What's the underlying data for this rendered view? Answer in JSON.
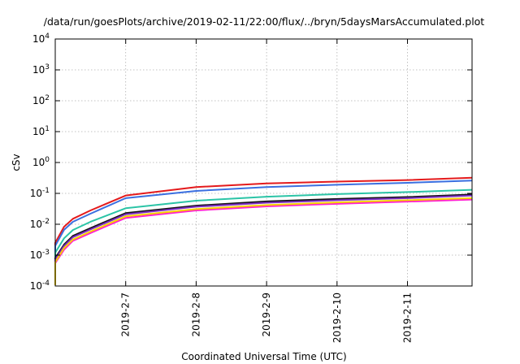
{
  "chart_data": {
    "type": "line",
    "title": "/data/run/goesPlots/archive/2019-02-11/22:00/flux/../bryn/5daysMarsAccumulated.plot",
    "xlabel": "Coordinated Universal Time (UTC)",
    "ylabel": "cSv",
    "yscale": "log",
    "ylim": [
      0.0001,
      10000
    ],
    "yticks": [
      {
        "base": "10",
        "exp": "-4"
      },
      {
        "base": "10",
        "exp": "-3"
      },
      {
        "base": "10",
        "exp": "-2"
      },
      {
        "base": "10",
        "exp": "-1"
      },
      {
        "base": "10",
        "exp": "0"
      },
      {
        "base": "10",
        "exp": "1"
      },
      {
        "base": "10",
        "exp": "2"
      },
      {
        "base": "10",
        "exp": "3"
      },
      {
        "base": "10",
        "exp": "4"
      }
    ],
    "xlim": [
      "2019-02-06",
      "2019-02-11T22:00"
    ],
    "xticks": [
      "2019-2-7",
      "2019-2-8",
      "2019-2-9",
      "2019-2-10",
      "2019-2-11"
    ],
    "grid": true,
    "x": [
      "2019-02-06T00:00",
      "2019-02-06T03:00",
      "2019-02-06T06:00",
      "2019-02-06T12:00",
      "2019-02-07T00:00",
      "2019-02-08T00:00",
      "2019-02-09T00:00",
      "2019-02-10T00:00",
      "2019-02-11T00:00",
      "2019-02-11T22:00"
    ],
    "series": [
      {
        "color": "#e41a1c",
        "values": [
          0.0025,
          0.0083,
          0.015,
          0.028,
          0.085,
          0.16,
          0.21,
          0.24,
          0.27,
          0.32
        ]
      },
      {
        "color": "#3b6fe0",
        "values": [
          0.002,
          0.0066,
          0.012,
          0.022,
          0.07,
          0.12,
          0.16,
          0.19,
          0.22,
          0.26
        ]
      },
      {
        "color": "#2bc4a6",
        "values": [
          0.0012,
          0.0035,
          0.0065,
          0.012,
          0.033,
          0.058,
          0.078,
          0.095,
          0.11,
          0.13
        ]
      },
      {
        "color": "#111111",
        "values": [
          0.0008,
          0.0022,
          0.0042,
          0.0075,
          0.023,
          0.04,
          0.055,
          0.066,
          0.076,
          0.092
        ]
      },
      {
        "color": "#7b2cbf",
        "values": [
          0.00072,
          0.002,
          0.0038,
          0.0068,
          0.021,
          0.037,
          0.05,
          0.06,
          0.07,
          0.085
        ]
      },
      {
        "color": "#ff1fd2",
        "values": [
          0.00055,
          0.0015,
          0.0029,
          0.0052,
          0.016,
          0.028,
          0.038,
          0.046,
          0.054,
          0.063
        ]
      },
      {
        "color": "#f5d100",
        "values": [
          0.0006,
          0.0017,
          0.0032,
          0.0058,
          0.018,
          0.031,
          0.042,
          0.051,
          0.06,
          0.07
        ]
      }
    ]
  }
}
